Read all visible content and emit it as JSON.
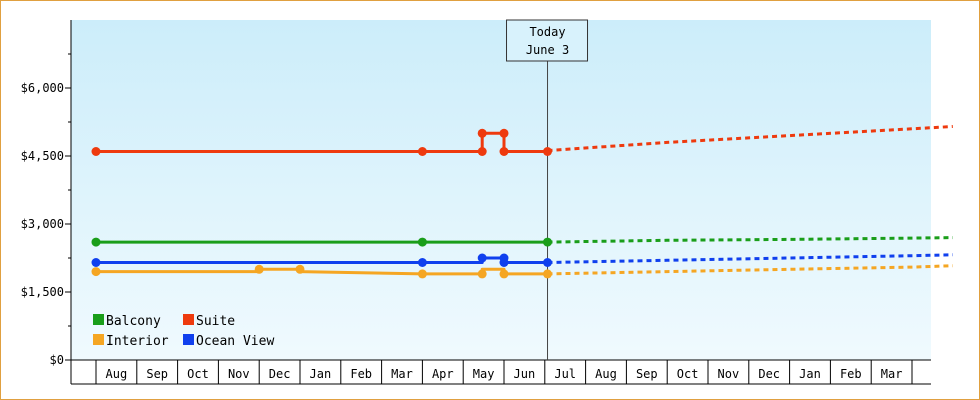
{
  "chart_data": {
    "type": "line",
    "ylim": [
      0,
      7500
    ],
    "y_ticks": [
      {
        "value": 0,
        "label": "$0"
      },
      {
        "value": 1500,
        "label": "$1,500"
      },
      {
        "value": 3000,
        "label": "$3,000"
      },
      {
        "value": 4500,
        "label": "$4,500"
      },
      {
        "value": 6000,
        "label": "$6,000"
      }
    ],
    "x_months": [
      "Aug",
      "Sep",
      "Oct",
      "Nov",
      "Dec",
      "Jan",
      "Feb",
      "Mar",
      "Apr",
      "May",
      "Jun",
      "Jul",
      "Aug",
      "Sep",
      "Oct",
      "Nov",
      "Dec",
      "Jan",
      "Feb",
      "Mar"
    ],
    "x_range": [
      "2023-07-01",
      "2024-04-01"
    ],
    "today": {
      "date": "2023-06-03",
      "label1": "Today",
      "label2": "June 3"
    },
    "background": {
      "top": "#ccedfa",
      "bottom": "#f0fafe"
    },
    "legend": {
      "placement": "bottom-left"
    },
    "series": [
      {
        "name": "Suite",
        "color": "#ee3a0e",
        "history": [
          [
            "2022-07-01",
            4600
          ],
          [
            "2023-03-01",
            4600
          ],
          [
            "2023-04-15",
            4600
          ],
          [
            "2023-04-15",
            5000
          ],
          [
            "2023-05-01",
            5000
          ],
          [
            "2023-05-01",
            4600
          ],
          [
            "2023-06-03",
            4600
          ]
        ],
        "markers": [
          [
            "2022-07-01",
            4600
          ],
          [
            "2023-03-01",
            4600
          ],
          [
            "2023-04-15",
            4600
          ],
          [
            "2023-04-15",
            5000
          ],
          [
            "2023-05-01",
            5000
          ],
          [
            "2023-05-01",
            4600
          ],
          [
            "2023-06-03",
            4600
          ]
        ],
        "forecast": [
          [
            "2023-06-03",
            4620
          ],
          [
            "2023-09-01",
            4800
          ],
          [
            "2023-12-01",
            4950
          ],
          [
            "2024-03-01",
            5100
          ],
          [
            "2024-04-01",
            5150
          ]
        ]
      },
      {
        "name": "Balcony",
        "color": "#1a9e1a",
        "history": [
          [
            "2022-07-01",
            2600
          ],
          [
            "2023-03-01",
            2600
          ],
          [
            "2023-06-03",
            2600
          ]
        ],
        "markers": [
          [
            "2022-07-01",
            2600
          ],
          [
            "2023-03-01",
            2600
          ],
          [
            "2023-06-03",
            2600
          ]
        ],
        "forecast": [
          [
            "2023-06-03",
            2600
          ],
          [
            "2023-09-01",
            2640
          ],
          [
            "2023-12-01",
            2660
          ],
          [
            "2024-03-01",
            2690
          ],
          [
            "2024-04-01",
            2700
          ]
        ]
      },
      {
        "name": "Ocean View",
        "color": "#1040ee",
        "history": [
          [
            "2022-07-01",
            2150
          ],
          [
            "2023-03-01",
            2150
          ],
          [
            "2023-04-15",
            2150
          ],
          [
            "2023-04-15",
            2250
          ],
          [
            "2023-05-01",
            2250
          ],
          [
            "2023-05-01",
            2150
          ],
          [
            "2023-06-03",
            2150
          ]
        ],
        "markers": [
          [
            "2022-07-01",
            2150
          ],
          [
            "2023-03-01",
            2150
          ],
          [
            "2023-04-15",
            2250
          ],
          [
            "2023-05-01",
            2250
          ],
          [
            "2023-05-01",
            2150
          ],
          [
            "2023-06-03",
            2150
          ]
        ],
        "forecast": [
          [
            "2023-06-03",
            2150
          ],
          [
            "2023-09-01",
            2200
          ],
          [
            "2023-12-01",
            2250
          ],
          [
            "2024-03-01",
            2300
          ],
          [
            "2024-04-01",
            2320
          ]
        ]
      },
      {
        "name": "Interior",
        "color": "#f5a623",
        "history": [
          [
            "2022-07-01",
            1950
          ],
          [
            "2022-11-01",
            1950
          ],
          [
            "2022-11-01",
            2000
          ],
          [
            "2022-12-01",
            2000
          ],
          [
            "2022-12-01",
            1950
          ],
          [
            "2023-03-01",
            1900
          ],
          [
            "2023-04-15",
            1900
          ],
          [
            "2023-04-15",
            2000
          ],
          [
            "2023-05-01",
            2000
          ],
          [
            "2023-05-01",
            1900
          ],
          [
            "2023-06-03",
            1900
          ]
        ],
        "markers": [
          [
            "2022-07-01",
            1950
          ],
          [
            "2022-11-01",
            2000
          ],
          [
            "2022-12-01",
            2000
          ],
          [
            "2023-03-01",
            1900
          ],
          [
            "2023-04-15",
            1900
          ],
          [
            "2023-05-01",
            1900
          ],
          [
            "2023-06-03",
            1900
          ]
        ],
        "forecast": [
          [
            "2023-06-03",
            1900
          ],
          [
            "2023-09-01",
            1950
          ],
          [
            "2023-12-01",
            2000
          ],
          [
            "2024-03-01",
            2050
          ],
          [
            "2024-04-01",
            2080
          ]
        ]
      }
    ]
  }
}
